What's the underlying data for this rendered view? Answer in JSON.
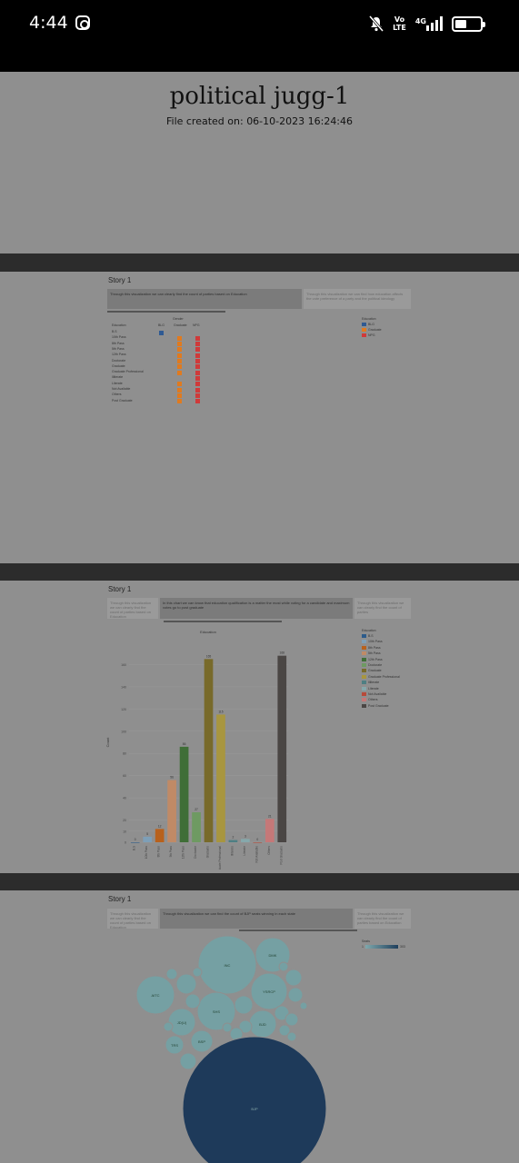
{
  "status_bar": {
    "time": "4:44",
    "volte_top": "Vo",
    "volte_bottom": "LTE",
    "network": "4G",
    "icons": [
      "instagram-icon",
      "bell-muted-icon",
      "signal-icon",
      "battery-icon"
    ]
  },
  "document": {
    "title": "political jugg-1",
    "created": "File created on: 06-10-2023 16:24:46"
  },
  "story1": {
    "label": "Story 1",
    "caption": "Through this visualization we can clearly find the count of parties based on Education",
    "side_caption": "Through this visualization we can find how education affects the vote preference of a party and the political ideology",
    "legend_title": "Education",
    "legend_items": [
      {
        "label": "BLG",
        "color": "#2f5a93"
      },
      {
        "label": "Graduate",
        "color": "#e07a1f"
      },
      {
        "label": "NPG",
        "color": "#d03a3a"
      }
    ],
    "row_header": "Education",
    "col_header": "Gender",
    "columns": [
      "BLG",
      "Graduate",
      "NPG"
    ],
    "rows": [
      "B.S",
      "10th Pass",
      "8th Pass",
      "5th Pass",
      "12th Pass",
      "Doctorate",
      "Graduate",
      "Graduate Professional",
      "Illiterate",
      "Literate",
      "Not Available",
      "Others",
      "Post Graduate"
    ]
  },
  "story2": {
    "label": "Story 1",
    "captions": [
      "Through this visualization we can clearly find the count of parties based on Education",
      "In this chart we can know that education qualification is a matter the most while voting for a candidate and maximum votes go to post graduate",
      "Through this visualization we can clearly find the count of parties"
    ],
    "legend_title": "Education",
    "legend_items": [
      {
        "label": "B.S",
        "color": "#2d5b8a"
      },
      {
        "label": "10th Pass",
        "color": "#7e9fb7"
      },
      {
        "label": "8th Pass",
        "color": "#b8611c"
      },
      {
        "label": "5th Pass",
        "color": "#c08a66"
      },
      {
        "label": "12th Pass",
        "color": "#3f6e37"
      },
      {
        "label": "Doctorate",
        "color": "#6e9a62"
      },
      {
        "label": "Graduate",
        "color": "#786a2a"
      },
      {
        "label": "Graduate Professional",
        "color": "#a8963f"
      },
      {
        "label": "Illiterate",
        "color": "#4e7f83"
      },
      {
        "label": "Literate",
        "color": "#86a8ab"
      },
      {
        "label": "Not Available",
        "color": "#b84a3a"
      },
      {
        "label": "Others",
        "color": "#c57878"
      },
      {
        "label": "Post Graduate",
        "color": "#4a4644"
      }
    ]
  },
  "chart_data": {
    "type": "bar",
    "title": "Education",
    "ylabel": "Count",
    "categories": [
      "B.S",
      "10th Pass",
      "8th Pass",
      "5th Pass",
      "12th Pass",
      "Doctorate",
      "Graduate",
      "Graduate Professional",
      "Illiterate",
      "Literate",
      "Not Available",
      "Others",
      "Post Graduate"
    ],
    "values": [
      0,
      5,
      12,
      56,
      86,
      27,
      165,
      115,
      2,
      3,
      0,
      21,
      168
    ],
    "ylim": [
      0,
      180
    ],
    "yticks": [
      0,
      10,
      20,
      40,
      60,
      80,
      100,
      120,
      140,
      160
    ],
    "colors": [
      "#2d5b8a",
      "#7e9fb7",
      "#b8611c",
      "#c08a66",
      "#3f6e37",
      "#6e9a62",
      "#786a2a",
      "#a8963f",
      "#4e7f83",
      "#86a8ab",
      "#b84a3a",
      "#c57878",
      "#4a4644"
    ]
  },
  "story3": {
    "label": "Story 1",
    "captions": [
      "Through this visualization we can clearly find the count of parties based on Education",
      "Through this visualization we can find the count of BJP seats winning in each state",
      "Through this visualization we can clearly find the count of parties based on Education"
    ],
    "legend_title": "Seats",
    "legend_min": "1",
    "legend_max": "303",
    "bubbles": [
      "BJP",
      "INC",
      "DMK",
      "AITC",
      "YSRCP",
      "SHS",
      "JD(U)",
      "BJD",
      "BSP",
      "TRS"
    ]
  }
}
